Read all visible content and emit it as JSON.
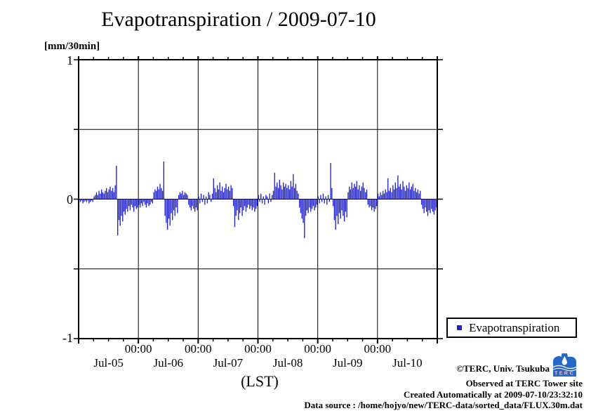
{
  "title": "Evapotranspiration / 2009-07-10",
  "y_axis_unit": "[mm/30min]",
  "x_axis_label": "(LST)",
  "legend": {
    "label": "Evapotranspiration",
    "marker_color": "#2222cc"
  },
  "footer": {
    "copyright": "©TERC, Univ. Tsukuba",
    "observed": "Observed at TERC Tower site",
    "created": "Created Automatically at 2009-07-10/23:32:10",
    "data_source": "Data source : /home/hojyo/new/TERC-data/sorted_data/FLUX.30m.dat",
    "logo_text": "TERC",
    "logo_color": "#2468c8"
  },
  "chart_data": {
    "type": "bar",
    "title": "Evapotranspiration / 2009-07-10",
    "ylabel": "[mm/30min]",
    "xlabel": "(LST)",
    "ylim": [
      -1,
      1
    ],
    "y_tick_values": [
      1,
      0,
      -1
    ],
    "y_tick_labels": [
      "1",
      "0",
      "-1"
    ],
    "y_gridlines": [
      0.5,
      0,
      -0.5
    ],
    "grid": true,
    "x_start": "2009-07-05 00:00",
    "x_end": "2009-07-11 00:00",
    "interval_minutes": 30,
    "x_major_tick_labels": [
      "00:00",
      "00:00",
      "00:00",
      "00:00",
      "00:00"
    ],
    "x_day_labels": [
      "Jul-05",
      "Jul-06",
      "Jul-07",
      "Jul-08",
      "Jul-09",
      "Jul-10"
    ],
    "legend_position": "outside-bottom-right",
    "series": [
      {
        "name": "Evapotranspiration",
        "color": "#2222cc",
        "values": [
          -0.01,
          -0.02,
          -0.01,
          -0.03,
          -0.02,
          -0.01,
          -0.02,
          -0.01,
          -0.03,
          -0.02,
          -0.01,
          -0.02,
          0.02,
          0.03,
          0.05,
          0.03,
          0.06,
          0.04,
          0.07,
          0.05,
          0.04,
          0.06,
          0.08,
          0.05,
          0.07,
          0.09,
          0.06,
          0.08,
          0.05,
          0.1,
          0.24,
          -0.26,
          -0.15,
          -0.19,
          -0.12,
          -0.16,
          -0.09,
          -0.11,
          -0.07,
          -0.09,
          -0.05,
          -0.08,
          -0.04,
          -0.06,
          -0.09,
          -0.05,
          -0.07,
          -0.06,
          -0.04,
          -0.06,
          -0.03,
          -0.05,
          -0.02,
          -0.04,
          -0.06,
          -0.03,
          -0.05,
          -0.04,
          -0.02,
          -0.03,
          0.05,
          0.07,
          0.06,
          0.09,
          0.07,
          0.11,
          0.08,
          0.06,
          0.27,
          -0.12,
          -0.17,
          -0.22,
          -0.14,
          -0.19,
          -0.1,
          -0.15,
          -0.08,
          -0.12,
          -0.06,
          -0.1,
          0.03,
          0.05,
          0.04,
          0.06,
          0.03,
          0.05,
          0.04,
          0.03,
          -0.04,
          -0.06,
          -0.08,
          -0.05,
          -0.07,
          -0.09,
          -0.06,
          -0.08,
          0.02,
          -0.03,
          0.04,
          -0.02,
          0.03,
          -0.04,
          0.02,
          -0.03,
          0.05,
          0.03,
          -0.02,
          0.04,
          0.15,
          0.08,
          0.05,
          0.1,
          0.07,
          0.12,
          0.06,
          0.09,
          0.05,
          0.08,
          0.11,
          0.07,
          0.09,
          0.06,
          0.1,
          0.08,
          -0.05,
          -0.2,
          -0.12,
          -0.08,
          -0.15,
          -0.1,
          -0.06,
          -0.12,
          -0.08,
          -0.05,
          -0.09,
          -0.06,
          -0.04,
          -0.07,
          -0.05,
          -0.08,
          -0.06,
          -0.09,
          -0.07,
          -0.05,
          0.03,
          -0.02,
          0.04,
          -0.03,
          0.02,
          -0.04,
          0.03,
          0.02,
          -0.03,
          0.04,
          -0.02,
          0.03,
          0.06,
          0.19,
          0.09,
          0.12,
          0.08,
          0.14,
          0.1,
          0.07,
          0.12,
          0.09,
          0.11,
          0.08,
          0.1,
          0.07,
          0.13,
          0.09,
          0.18,
          0.08,
          0.11,
          0.06,
          0.04,
          -0.06,
          -0.1,
          -0.14,
          -0.17,
          -0.28,
          -0.12,
          -0.08,
          -0.1,
          -0.06,
          -0.09,
          -0.07,
          -0.05,
          -0.08,
          -0.06,
          -0.04,
          0.02,
          -0.03,
          0.03,
          -0.02,
          0.04,
          -0.03,
          0.02,
          -0.04,
          0.03,
          -0.02,
          0.26,
          0.08,
          -0.05,
          -0.15,
          -0.22,
          -0.12,
          -0.18,
          -0.1,
          -0.14,
          -0.08,
          -0.12,
          -0.16,
          -0.09,
          -0.13,
          0.05,
          0.09,
          0.07,
          0.12,
          0.08,
          0.11,
          0.09,
          0.13,
          0.07,
          0.1,
          0.06,
          0.09,
          0.12,
          0.08,
          0.05,
          0.07,
          -0.04,
          -0.06,
          -0.05,
          -0.08,
          -0.06,
          -0.09,
          -0.07,
          -0.05,
          0.04,
          0.02,
          0.05,
          0.03,
          0.06,
          0.04,
          0.07,
          0.05,
          0.15,
          0.06,
          0.08,
          0.05,
          0.1,
          0.07,
          0.12,
          0.08,
          0.17,
          0.09,
          0.11,
          0.07,
          0.13,
          0.09,
          0.06,
          0.1,
          0.08,
          0.12,
          0.07,
          0.09,
          0.11,
          0.06,
          0.08,
          0.05,
          0.07,
          0.04,
          0.06,
          -0.04,
          -0.07,
          -0.1,
          -0.06,
          -0.09,
          -0.12,
          -0.08,
          -0.1,
          -0.07,
          -0.09,
          -0.11,
          -0.08,
          -0.06
        ]
      }
    ]
  }
}
